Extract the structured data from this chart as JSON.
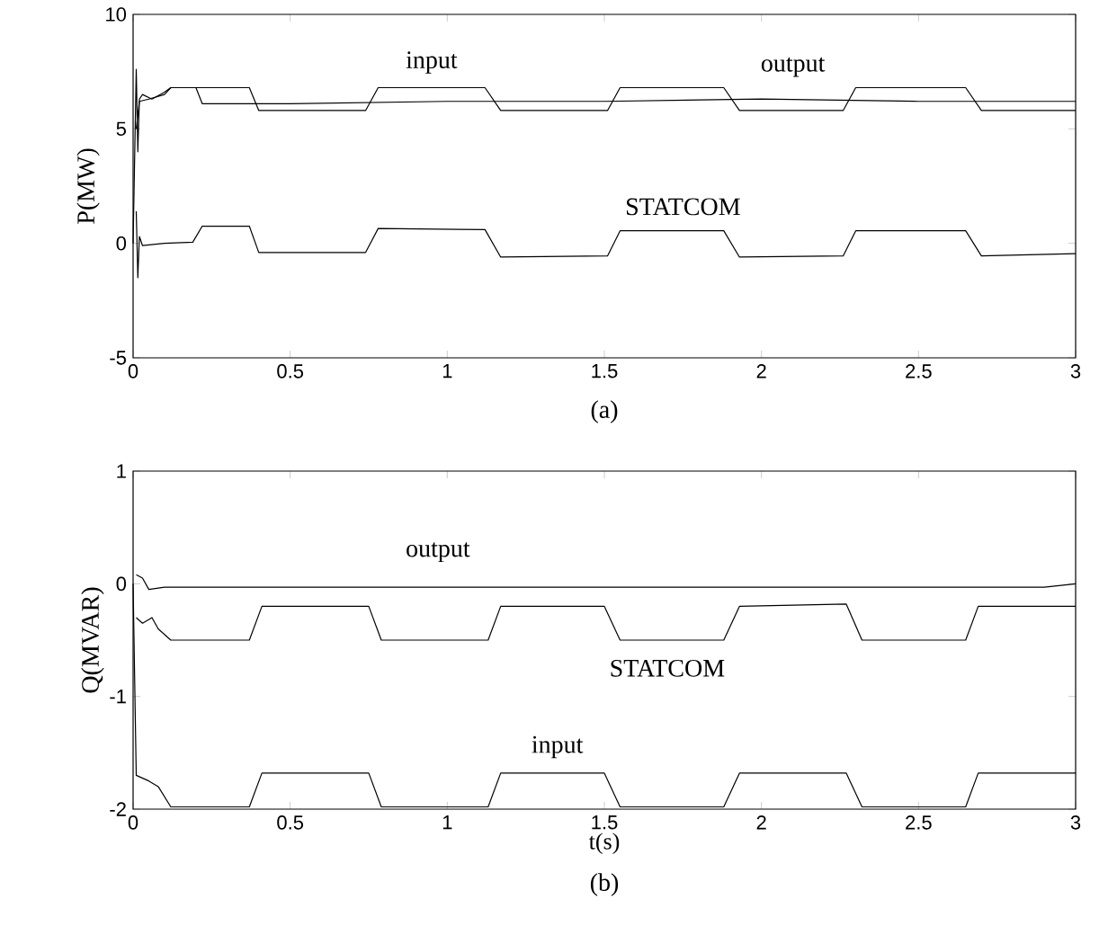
{
  "chart_data": [
    {
      "type": "line",
      "ylabel": "P(MW)",
      "annotations": [
        "(a)"
      ],
      "xlim": [
        0,
        3
      ],
      "xticks": [
        0,
        0.5,
        1,
        1.5,
        2,
        2.5,
        3
      ],
      "ylim": [
        -5,
        10
      ],
      "yticks": [
        -5,
        0,
        5,
        10
      ],
      "marker": "none",
      "line_style": "solid",
      "series": [
        {
          "name": "input",
          "color": "#000000",
          "x": [
            0,
            0.01,
            0.015,
            0.02,
            0.03,
            0.06,
            0.1,
            0.12,
            0.37,
            0.4,
            0.74,
            0.78,
            1.12,
            1.17,
            1.51,
            1.55,
            1.88,
            1.93,
            2.26,
            2.3,
            2.65,
            2.7,
            3.0
          ],
          "values": [
            0,
            7.6,
            4,
            6.3,
            6.5,
            6.3,
            6.6,
            6.8,
            6.8,
            5.8,
            5.8,
            6.8,
            6.8,
            5.8,
            5.8,
            6.8,
            6.8,
            5.8,
            5.8,
            6.8,
            6.8,
            5.8,
            5.8
          ]
        },
        {
          "name": "output",
          "color": "#000000",
          "x": [
            0.01,
            0.02,
            0.05,
            0.1,
            0.12,
            0.2,
            0.22,
            0.5,
            1.0,
            1.5,
            2.0,
            2.5,
            3.0
          ],
          "values": [
            5,
            6.2,
            6.3,
            6.5,
            6.8,
            6.8,
            6.1,
            6.1,
            6.2,
            6.2,
            6.3,
            6.2,
            6.2
          ]
        },
        {
          "name": "STATCOM",
          "color": "#000000",
          "x": [
            0.01,
            0.015,
            0.02,
            0.03,
            0.1,
            0.19,
            0.22,
            0.37,
            0.4,
            0.74,
            0.78,
            1.12,
            1.17,
            1.51,
            1.55,
            1.88,
            1.93,
            2.26,
            2.3,
            2.65,
            2.7,
            3.0
          ],
          "values": [
            1.4,
            -1.5,
            0.3,
            -0.1,
            0,
            0.05,
            0.75,
            0.75,
            -0.4,
            -0.4,
            0.65,
            0.6,
            -0.6,
            -0.55,
            0.55,
            0.55,
            -0.6,
            -0.55,
            0.55,
            0.55,
            -0.55,
            -0.45
          ]
        }
      ]
    },
    {
      "type": "line",
      "xlabel": "t(s)",
      "ylabel": "Q(MVAR)",
      "annotations": [
        "(b)"
      ],
      "xlim": [
        0,
        3
      ],
      "xticks": [
        0,
        0.5,
        1,
        1.5,
        2,
        2.5,
        3
      ],
      "ylim": [
        -2,
        1
      ],
      "yticks": [
        -2,
        -1,
        0,
        1
      ],
      "marker": "none",
      "line_style": "solid",
      "series": [
        {
          "name": "output",
          "color": "#000000",
          "x": [
            0.01,
            0.03,
            0.05,
            0.1,
            1.0,
            2.0,
            2.9,
            3.0
          ],
          "values": [
            0.08,
            0.05,
            -0.05,
            -0.03,
            -0.03,
            -0.03,
            -0.03,
            0.0
          ]
        },
        {
          "name": "STATCOM",
          "color": "#000000",
          "x": [
            0.01,
            0.03,
            0.06,
            0.08,
            0.12,
            0.37,
            0.41,
            0.75,
            0.79,
            1.13,
            1.17,
            1.5,
            1.55,
            1.88,
            1.93,
            2.27,
            2.32,
            2.65,
            2.69,
            3.0
          ],
          "values": [
            -0.3,
            -0.35,
            -0.3,
            -0.4,
            -0.5,
            -0.5,
            -0.2,
            -0.2,
            -0.5,
            -0.5,
            -0.2,
            -0.2,
            -0.5,
            -0.5,
            -0.2,
            -0.18,
            -0.5,
            -0.5,
            -0.2,
            -0.2
          ]
        },
        {
          "name": "input",
          "color": "#000000",
          "x": [
            0,
            0.01,
            0.05,
            0.08,
            0.12,
            0.37,
            0.41,
            0.75,
            0.79,
            1.13,
            1.17,
            1.5,
            1.55,
            1.88,
            1.93,
            2.27,
            2.32,
            2.65,
            2.69,
            3.0
          ],
          "values": [
            0,
            -1.7,
            -1.75,
            -1.8,
            -1.98,
            -1.98,
            -1.68,
            -1.68,
            -1.98,
            -1.98,
            -1.68,
            -1.68,
            -1.98,
            -1.98,
            -1.68,
            -1.68,
            -1.98,
            -1.98,
            -1.68,
            -1.68
          ]
        }
      ]
    }
  ]
}
